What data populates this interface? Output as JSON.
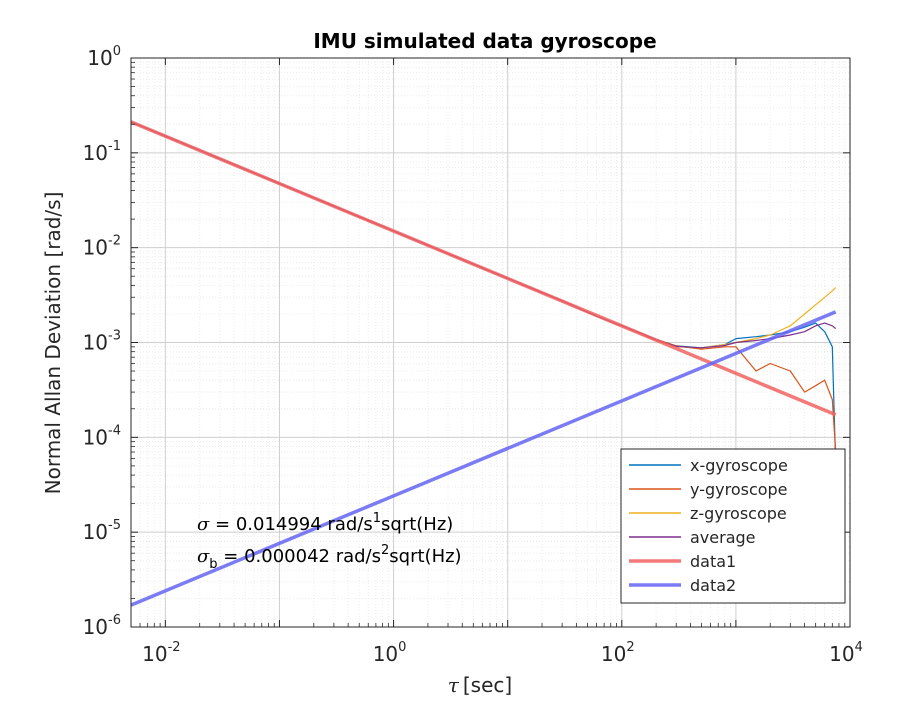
{
  "chart_data": {
    "type": "line",
    "title": "IMU simulated data gyroscope",
    "xlabel_symbol": "τ",
    "xlabel_unit": "[sec]",
    "ylabel": "Normal Allan Deviation [rad/s]",
    "xscale": "log",
    "yscale": "log",
    "xlim": [
      0.005,
      10000
    ],
    "ylim": [
      1e-06,
      1
    ],
    "grid": true,
    "minor_grid": true,
    "legend_position": "bottom-right",
    "x_ticks": [
      {
        "base": "10",
        "exp": "-2",
        "value": 0.01
      },
      {
        "base": "10",
        "exp": "0",
        "value": 1
      },
      {
        "base": "10",
        "exp": "2",
        "value": 100
      },
      {
        "base": "10",
        "exp": "4",
        "value": 10000
      }
    ],
    "y_ticks": [
      {
        "base": "10",
        "exp": "0",
        "value": 1
      },
      {
        "base": "10",
        "exp": "-1",
        "value": 0.1
      },
      {
        "base": "10",
        "exp": "-2",
        "value": 0.01
      },
      {
        "base": "10",
        "exp": "-3",
        "value": 0.001
      },
      {
        "base": "10",
        "exp": "-4",
        "value": 0.0001
      },
      {
        "base": "10",
        "exp": "-5",
        "value": 1e-05
      },
      {
        "base": "10",
        "exp": "-6",
        "value": 1e-06
      }
    ],
    "annotations": {
      "sigma": {
        "symbol": "σ",
        "text1": " = 0.014994 rad/s",
        "sup": "1",
        "text2": "sqrt(Hz)"
      },
      "sigma_b": {
        "symbol": "σ",
        "sub": "b",
        "text1": " = 0.000042 rad/s",
        "sup": "2",
        "text2": "sqrt(Hz)"
      }
    },
    "series": [
      {
        "name": "x-gyroscope",
        "color": "#0072BD",
        "x": [
          0.005,
          0.01,
          0.1,
          1,
          10,
          30,
          60,
          100,
          200,
          300,
          500,
          800,
          1000,
          1500,
          2000,
          3000,
          4000,
          5000,
          6000,
          7000,
          7500
        ],
        "y": [
          0.212,
          0.15,
          0.0474,
          0.015,
          0.00474,
          0.00275,
          0.0019,
          0.0015,
          0.00108,
          0.00092,
          0.00088,
          0.00095,
          0.0011,
          0.00115,
          0.0012,
          0.0013,
          0.00145,
          0.0016,
          0.0013,
          0.0009,
          5e-05
        ]
      },
      {
        "name": "y-gyroscope",
        "color": "#D95319",
        "x": [
          0.005,
          0.01,
          0.1,
          1,
          10,
          30,
          60,
          100,
          200,
          300,
          500,
          800,
          1000,
          1500,
          2000,
          3000,
          4000,
          5000,
          6000,
          7000,
          7500
        ],
        "y": [
          0.212,
          0.15,
          0.0474,
          0.015,
          0.00474,
          0.00275,
          0.0019,
          0.0015,
          0.00108,
          0.00092,
          0.00085,
          0.0009,
          0.0009,
          0.0005,
          0.0006,
          0.0005,
          0.0003,
          0.00035,
          0.0004,
          0.00025,
          7e-05
        ]
      },
      {
        "name": "z-gyroscope",
        "color": "#EDB120",
        "x": [
          0.005,
          0.01,
          0.1,
          1,
          10,
          30,
          60,
          100,
          200,
          300,
          500,
          800,
          1000,
          1500,
          2000,
          3000,
          4000,
          5000,
          6000,
          7000,
          7500
        ],
        "y": [
          0.212,
          0.15,
          0.0474,
          0.015,
          0.00474,
          0.00275,
          0.0019,
          0.0015,
          0.00105,
          0.0009,
          0.00088,
          0.00095,
          0.001,
          0.0011,
          0.0012,
          0.0015,
          0.002,
          0.0025,
          0.003,
          0.0035,
          0.0038
        ]
      },
      {
        "name": "average",
        "color": "#7E2F8E",
        "x": [
          0.005,
          0.01,
          0.1,
          1,
          10,
          30,
          60,
          100,
          200,
          300,
          500,
          800,
          1000,
          1500,
          2000,
          3000,
          4000,
          5000,
          6000,
          7000,
          7500
        ],
        "y": [
          0.212,
          0.15,
          0.0474,
          0.015,
          0.00474,
          0.00275,
          0.0019,
          0.0015,
          0.00107,
          0.00091,
          0.00088,
          0.00093,
          0.001,
          0.00105,
          0.0011,
          0.0012,
          0.0013,
          0.0015,
          0.0016,
          0.0015,
          0.0014
        ]
      },
      {
        "name": "data1",
        "color": "#F26161",
        "x": [
          0.005,
          7500
        ],
        "y": [
          0.212,
          0.000173
        ]
      },
      {
        "name": "data2",
        "color": "#6464F5",
        "x": [
          0.005,
          7500
        ],
        "y": [
          1.7e-06,
          0.0021
        ]
      }
    ]
  }
}
